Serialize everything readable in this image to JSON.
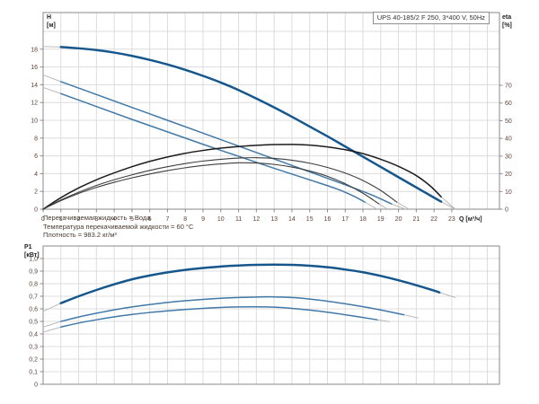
{
  "header": {
    "title_box": "UPS 40-185/2 F 250, 3*400 V, 50Hz"
  },
  "axis_labels": {
    "h_line1": "H",
    "h_line2": "[м]",
    "eta_line1": "eta",
    "eta_line2": "[%]",
    "p1_line1": "P1",
    "p1_line2": "[кВт]",
    "q": "Q [м³/ч]"
  },
  "conditions": {
    "line1": "Перекачиваемая жидкость = Вода",
    "line2": "Температура перекачиваемой жидкости = 60 °C",
    "line3": "Плотность = 983.2 кг/м³"
  },
  "colors": {
    "curve_blue_main": "#15578d",
    "curve_blue_secondary": "#4179a8",
    "curve_black_main": "#1c1c1c",
    "curve_black_secondary": "#3d3d3d",
    "curve_faded_tail": "#b3b3b3",
    "grid": "#dcdcdc",
    "spine": "#8a8a8a",
    "tick_text": "#5c4338",
    "background": "#ffffff"
  },
  "chart_data": [
    {
      "id": "hq-eta-chart",
      "type": "line",
      "title": "UPS 40-185/2 F 250, 3*400 V, 50Hz",
      "xlabel": "Q [м³/ч]",
      "ylabel_left": "H [м]",
      "ylabel_right": "eta [%]",
      "xlim": [
        0,
        25.7
      ],
      "ylim_left": [
        0,
        22.1
      ],
      "ylim_right": [
        0,
        111
      ],
      "grid": true,
      "x_ticks": [
        0,
        1,
        2,
        3,
        4,
        5,
        6,
        7,
        8,
        9,
        10,
        11,
        12,
        13,
        14,
        15,
        16,
        17,
        18,
        19,
        20,
        21,
        22,
        23
      ],
      "y_ticks_left": [
        0,
        2,
        4,
        6,
        8,
        10,
        12,
        14,
        16,
        18
      ],
      "y_ticks_right": [
        0,
        10,
        20,
        30,
        40,
        50,
        60,
        70
      ],
      "series": [
        {
          "name": "hq-curve-speed3",
          "axis": "left",
          "color": "#15578d",
          "width": 2.5,
          "lead": [
            [
              0,
              18.3
            ],
            [
              1,
              18.25
            ]
          ],
          "main": [
            [
              1,
              18.25
            ],
            [
              2,
              18.1
            ],
            [
              3,
              17.9
            ],
            [
              4,
              17.62
            ],
            [
              5,
              17.25
            ],
            [
              6,
              16.8
            ],
            [
              7,
              16.28
            ],
            [
              8,
              15.68
            ],
            [
              9,
              15.0
            ],
            [
              10,
              14.25
            ],
            [
              11,
              13.4
            ],
            [
              12,
              12.45
            ],
            [
              13,
              11.45
            ],
            [
              14,
              10.4
            ],
            [
              15,
              9.3
            ],
            [
              16,
              8.2
            ],
            [
              17,
              7.05
            ],
            [
              18,
              5.9
            ],
            [
              19,
              4.75
            ],
            [
              20,
              3.6
            ],
            [
              21,
              2.45
            ],
            [
              22,
              1.3
            ],
            [
              22.4,
              0.85
            ]
          ],
          "tail": [
            [
              22.4,
              0.85
            ],
            [
              23.2,
              0
            ]
          ]
        },
        {
          "name": "hq-curve-speed2",
          "axis": "left",
          "color": "#4179a8",
          "width": 1.5,
          "lead": [
            [
              0,
              15.1
            ],
            [
              1,
              14.35
            ]
          ],
          "main": [
            [
              1,
              14.35
            ],
            [
              3,
              12.9
            ],
            [
              5,
              11.45
            ],
            [
              7,
              10.0
            ],
            [
              9,
              8.55
            ],
            [
              11,
              7.1
            ],
            [
              13,
              5.65
            ],
            [
              15,
              4.2
            ],
            [
              17,
              2.75
            ],
            [
              18.5,
              1.6
            ],
            [
              19.6,
              0.6
            ]
          ],
          "tail": [
            [
              19.6,
              0.6
            ],
            [
              20.4,
              0
            ]
          ]
        },
        {
          "name": "hq-curve-speed1",
          "axis": "left",
          "color": "#4179a8",
          "width": 1.5,
          "lead": [
            [
              0,
              13.7
            ],
            [
              1,
              13.0
            ]
          ],
          "main": [
            [
              1,
              13.0
            ],
            [
              3,
              11.55
            ],
            [
              5,
              10.1
            ],
            [
              7,
              8.7
            ],
            [
              9,
              7.3
            ],
            [
              11,
              5.95
            ],
            [
              13,
              4.6
            ],
            [
              15,
              3.3
            ],
            [
              16.5,
              2.3
            ],
            [
              17.5,
              1.45
            ],
            [
              18.1,
              0.8
            ]
          ],
          "tail": [
            [
              18.1,
              0.8
            ],
            [
              18.8,
              0
            ]
          ]
        },
        {
          "name": "eta-curve-speed3",
          "axis": "right",
          "color": "#1c1c1c",
          "width": 1.5,
          "lead": [],
          "main": [
            [
              0,
              0
            ],
            [
              1,
              6.5
            ],
            [
              2,
              12
            ],
            [
              3,
              16.6
            ],
            [
              4,
              20.5
            ],
            [
              5,
              24
            ],
            [
              6,
              27
            ],
            [
              7,
              29.5
            ],
            [
              8,
              31.6
            ],
            [
              9,
              33.2
            ],
            [
              10,
              34.5
            ],
            [
              11,
              35.4
            ],
            [
              12,
              36.1
            ],
            [
              13,
              36.5
            ],
            [
              14,
              36.6
            ],
            [
              15,
              36.2
            ],
            [
              16,
              35.2
            ],
            [
              17,
              33.6
            ],
            [
              18,
              31.4
            ],
            [
              19,
              28.2
            ],
            [
              20,
              24.2
            ],
            [
              21,
              19
            ],
            [
              21.8,
              13
            ],
            [
              22.4,
              7
            ]
          ],
          "tail": [
            [
              22.4,
              7
            ],
            [
              23.2,
              0
            ]
          ]
        },
        {
          "name": "eta-curve-speed2",
          "axis": "right",
          "color": "#3d3d3d",
          "width": 1.1,
          "lead": [],
          "main": [
            [
              0,
              0
            ],
            [
              1,
              5.2
            ],
            [
              2,
              9.6
            ],
            [
              3,
              13.4
            ],
            [
              4,
              16.6
            ],
            [
              5,
              19.4
            ],
            [
              6,
              21.9
            ],
            [
              7,
              24
            ],
            [
              8,
              25.8
            ],
            [
              9,
              27.2
            ],
            [
              10,
              28.2
            ],
            [
              11,
              28.9
            ],
            [
              12,
              29.1
            ],
            [
              13,
              28.7
            ],
            [
              14,
              27.7
            ],
            [
              15,
              26
            ],
            [
              16,
              23.6
            ],
            [
              17,
              20.4
            ],
            [
              18,
              16.2
            ],
            [
              19,
              10.6
            ],
            [
              19.9,
              4
            ]
          ],
          "tail": [
            [
              19.9,
              4
            ],
            [
              20.5,
              0.5
            ]
          ]
        },
        {
          "name": "eta-curve-speed1",
          "axis": "right",
          "color": "#3d3d3d",
          "width": 1.1,
          "lead": [],
          "main": [
            [
              0,
              0
            ],
            [
              1,
              4.8
            ],
            [
              2,
              8.9
            ],
            [
              3,
              12.3
            ],
            [
              4,
              15.2
            ],
            [
              5,
              17.7
            ],
            [
              6,
              19.9
            ],
            [
              7,
              21.8
            ],
            [
              8,
              23.4
            ],
            [
              9,
              24.7
            ],
            [
              10,
              25.6
            ],
            [
              11,
              26.2
            ],
            [
              12,
              26.1
            ],
            [
              13,
              25.3
            ],
            [
              14,
              23.8
            ],
            [
              15,
              21.6
            ],
            [
              16,
              18.6
            ],
            [
              17,
              14.4
            ],
            [
              18,
              9
            ],
            [
              18.9,
              3
            ]
          ],
          "tail": [
            [
              18.9,
              3
            ],
            [
              19.3,
              0.5
            ]
          ]
        }
      ]
    },
    {
      "id": "p1-chart",
      "type": "line",
      "title": "",
      "xlabel": "",
      "ylabel_left": "P1 [кВт]",
      "xlim": [
        0,
        25.7
      ],
      "ylim": [
        0,
        1.1
      ],
      "grid": true,
      "y_tick_values": [
        0,
        0.1,
        0.2,
        0.3,
        0.4,
        0.5,
        0.6,
        0.7,
        0.8,
        0.9,
        1.0
      ],
      "y_tick_labels": [
        "0",
        "0,1",
        "0,2",
        "0,3",
        "0,4",
        "0,5",
        "0,6",
        "0,7",
        "0,8",
        "0,9",
        "1,0"
      ],
      "series": [
        {
          "name": "p1-curve-speed3",
          "axis": "left",
          "color": "#15578d",
          "width": 2.5,
          "lead": [
            [
              0,
              0.58
            ],
            [
              1,
              0.645
            ]
          ],
          "main": [
            [
              1,
              0.645
            ],
            [
              2,
              0.7
            ],
            [
              3,
              0.75
            ],
            [
              4,
              0.795
            ],
            [
              5,
              0.835
            ],
            [
              6,
              0.865
            ],
            [
              7,
              0.89
            ],
            [
              8,
              0.91
            ],
            [
              9,
              0.925
            ],
            [
              10,
              0.937
            ],
            [
              11,
              0.945
            ],
            [
              12,
              0.95
            ],
            [
              13,
              0.952
            ],
            [
              14,
              0.95
            ],
            [
              15,
              0.943
            ],
            [
              16,
              0.931
            ],
            [
              17,
              0.913
            ],
            [
              18,
              0.891
            ],
            [
              19,
              0.862
            ],
            [
              20,
              0.827
            ],
            [
              21,
              0.788
            ],
            [
              22,
              0.745
            ],
            [
              22.3,
              0.731
            ]
          ],
          "tail": [
            [
              22.3,
              0.731
            ],
            [
              23.2,
              0.69
            ]
          ]
        },
        {
          "name": "p1-curve-speed2",
          "axis": "left",
          "color": "#4179a8",
          "width": 1.5,
          "lead": [
            [
              0,
              0.455
            ],
            [
              1,
              0.5
            ]
          ],
          "main": [
            [
              1,
              0.5
            ],
            [
              2,
              0.535
            ],
            [
              3,
              0.565
            ],
            [
              4,
              0.592
            ],
            [
              5,
              0.615
            ],
            [
              6,
              0.634
            ],
            [
              7,
              0.651
            ],
            [
              8,
              0.664
            ],
            [
              9,
              0.675
            ],
            [
              10,
              0.684
            ],
            [
              11,
              0.69
            ],
            [
              12,
              0.694
            ],
            [
              13,
              0.695
            ],
            [
              14,
              0.69
            ],
            [
              15,
              0.678
            ],
            [
              16,
              0.661
            ],
            [
              17,
              0.64
            ],
            [
              18,
              0.617
            ],
            [
              19,
              0.591
            ],
            [
              20.3,
              0.553
            ]
          ],
          "tail": [
            [
              20.3,
              0.553
            ],
            [
              21.1,
              0.527
            ]
          ]
        },
        {
          "name": "p1-curve-speed1",
          "axis": "left",
          "color": "#4179a8",
          "width": 1.5,
          "lead": [
            [
              0,
              0.415
            ],
            [
              1,
              0.455
            ]
          ],
          "main": [
            [
              1,
              0.455
            ],
            [
              2,
              0.487
            ],
            [
              3,
              0.513
            ],
            [
              4,
              0.536
            ],
            [
              5,
              0.555
            ],
            [
              6,
              0.571
            ],
            [
              7,
              0.584
            ],
            [
              8,
              0.595
            ],
            [
              9,
              0.604
            ],
            [
              10,
              0.611
            ],
            [
              11,
              0.615
            ],
            [
              12,
              0.616
            ],
            [
              13,
              0.613
            ],
            [
              14,
              0.604
            ],
            [
              15,
              0.59
            ],
            [
              16,
              0.573
            ],
            [
              17,
              0.553
            ],
            [
              18,
              0.531
            ],
            [
              18.8,
              0.513
            ]
          ],
          "tail": [
            [
              18.8,
              0.513
            ],
            [
              19.5,
              0.498
            ]
          ]
        }
      ]
    }
  ]
}
